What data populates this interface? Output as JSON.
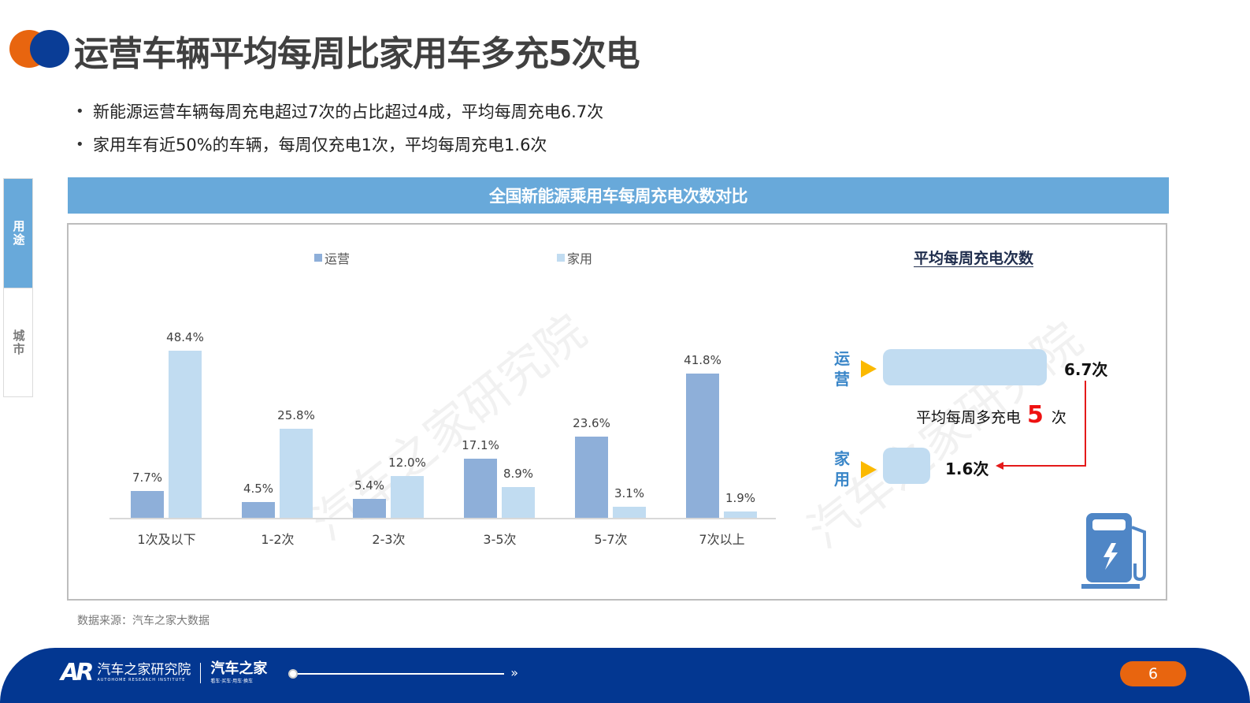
{
  "header": {
    "title": "运营车辆平均每周比家用车多充5次电",
    "bullets": [
      "新能源运营车辆每周充电超过7次的占比超过4成，平均每周充电6.7次",
      "家用车有近50%的车辆，每周仅充电1次，平均每周充电1.6次"
    ]
  },
  "side_tabs": [
    {
      "label": "用途",
      "active": true
    },
    {
      "label": "城市",
      "active": false
    }
  ],
  "chart_banner": "全国新能源乘用车每周充电次数对比",
  "watermark": "汽车之家研究院",
  "chart_data": {
    "type": "bar",
    "title": "全国新能源乘用车每周充电次数对比",
    "categories": [
      "1次及以下",
      "1-2次",
      "2-3次",
      "3-5次",
      "5-7次",
      "7次以上"
    ],
    "series": [
      {
        "name": "运营",
        "color": "#8eafd9",
        "values": [
          7.7,
          4.5,
          5.4,
          17.1,
          23.6,
          41.8
        ]
      },
      {
        "name": "家用",
        "color": "#c1dcf1",
        "values": [
          48.4,
          25.8,
          12.0,
          8.9,
          3.1,
          1.9
        ]
      }
    ],
    "value_labels": {
      "运营": [
        "7.7%",
        "4.5%",
        "5.4%",
        "17.1%",
        "23.6%",
        "41.8%"
      ],
      "家用": [
        "48.4%",
        "25.8%",
        "12.0%",
        "8.9%",
        "3.1%",
        "1.9%"
      ]
    },
    "xlabel": "",
    "ylabel": "",
    "unit": "%",
    "ylim": [
      0,
      50
    ],
    "grid": false,
    "legend_position": "top"
  },
  "avg_panel": {
    "title": "平均每周充电次数",
    "rows": [
      {
        "label_top": "运",
        "label_bottom": "营",
        "value": 6.7,
        "value_label": "6.7次"
      },
      {
        "label_top": "家",
        "label_bottom": "用",
        "value": 1.6,
        "value_label": "1.6次"
      }
    ],
    "diff_prefix": "平均每周多充电",
    "diff_value": "5",
    "diff_suffix": "次"
  },
  "source": "数据来源：汽车之家大数据",
  "footer": {
    "ar_mark": "AR",
    "org_name": "汽车之家研究院",
    "org_en": "AUTOHOME RESEARCH INSTITUTE",
    "brand_name": "汽车之家",
    "brand_sub": "看车·买车·用车·换车",
    "progress_arrow": "»",
    "page_number": "6"
  },
  "colors": {
    "accent_orange": "#e8650f",
    "accent_navy": "#033791",
    "banner_blue": "#68a9da",
    "highlight_red": "#ee1111",
    "triangle_yellow": "#fbb900"
  }
}
